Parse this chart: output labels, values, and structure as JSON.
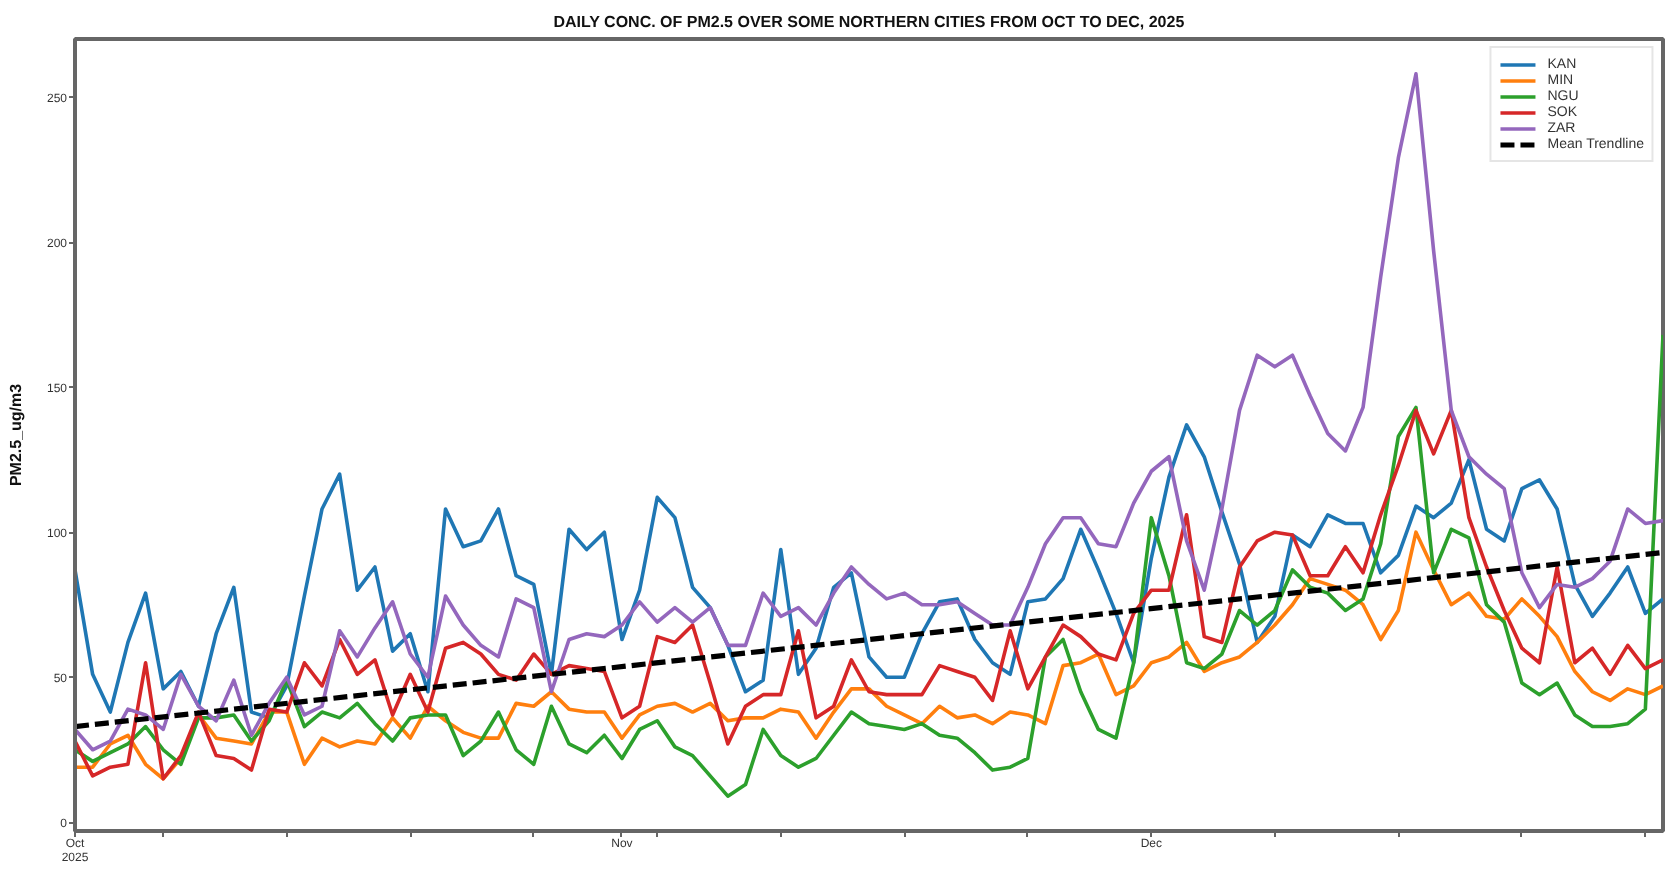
{
  "chart_data": {
    "type": "line",
    "title": "DAILY CONC. OF PM2.5 OVER SOME NORTHERN CITIES FROM OCT TO DEC, 2025",
    "ylabel": "PM2.5_ug/m3",
    "x": [
      "2025-10-01",
      "2025-10-02",
      "2025-10-03",
      "2025-10-04",
      "2025-10-05",
      "2025-10-06",
      "2025-10-07",
      "2025-10-08",
      "2025-10-09",
      "2025-10-10",
      "2025-10-11",
      "2025-10-12",
      "2025-10-13",
      "2025-10-14",
      "2025-10-15",
      "2025-10-16",
      "2025-10-17",
      "2025-10-18",
      "2025-10-19",
      "2025-10-20",
      "2025-10-21",
      "2025-10-22",
      "2025-10-23",
      "2025-10-24",
      "2025-10-25",
      "2025-10-26",
      "2025-10-27",
      "2025-10-28",
      "2025-10-29",
      "2025-10-30",
      "2025-10-31",
      "2025-11-01",
      "2025-11-02",
      "2025-11-03",
      "2025-11-04",
      "2025-11-05",
      "2025-11-06",
      "2025-11-07",
      "2025-11-08",
      "2025-11-09",
      "2025-11-10",
      "2025-11-11",
      "2025-11-12",
      "2025-11-13",
      "2025-11-14",
      "2025-11-15",
      "2025-11-16",
      "2025-11-17",
      "2025-11-18",
      "2025-11-19",
      "2025-11-20",
      "2025-11-21",
      "2025-11-22",
      "2025-11-23",
      "2025-11-24",
      "2025-11-25",
      "2025-11-26",
      "2025-11-27",
      "2025-11-28",
      "2025-11-29",
      "2025-11-30",
      "2025-12-01",
      "2025-12-02",
      "2025-12-03",
      "2025-12-04",
      "2025-12-05",
      "2025-12-06",
      "2025-12-07",
      "2025-12-08",
      "2025-12-09",
      "2025-12-10",
      "2025-12-11",
      "2025-12-12",
      "2025-12-13",
      "2025-12-14",
      "2025-12-15",
      "2025-12-16",
      "2025-12-17",
      "2025-12-18",
      "2025-12-19",
      "2025-12-20",
      "2025-12-21",
      "2025-12-22",
      "2025-12-23",
      "2025-12-24",
      "2025-12-25",
      "2025-12-26",
      "2025-12-27",
      "2025-12-28",
      "2025-12-29",
      "2025-12-30"
    ],
    "series": [
      {
        "name": "KAN",
        "color": "#1f77b4",
        "values": [
          87,
          51,
          38,
          62,
          79,
          46,
          52,
          40,
          65,
          81,
          38,
          36,
          47,
          78,
          108,
          120,
          80,
          88,
          59,
          65,
          45,
          108,
          95,
          97,
          108,
          85,
          82,
          51,
          101,
          94,
          100,
          63,
          80,
          112,
          105,
          81,
          74,
          61,
          45,
          49,
          94,
          51,
          60,
          81,
          86,
          57,
          50,
          50,
          65,
          76,
          77,
          63,
          55,
          51,
          76,
          77,
          84,
          101,
          87,
          72,
          55,
          91,
          119,
          137,
          126,
          107,
          89,
          62,
          71,
          99,
          95,
          106,
          103,
          103,
          86,
          92,
          109,
          105,
          110,
          125,
          101,
          97,
          115,
          118,
          108,
          82,
          71,
          79,
          88,
          72,
          77
        ]
      },
      {
        "name": "MIN",
        "color": "#ff7f0e",
        "values": [
          19,
          19,
          27,
          30,
          20,
          15,
          22,
          37,
          29,
          28,
          27,
          38,
          38,
          20,
          29,
          26,
          28,
          27,
          36,
          29,
          40,
          35,
          31,
          29,
          29,
          41,
          40,
          45,
          39,
          38,
          38,
          29,
          37,
          40,
          41,
          38,
          41,
          35,
          36,
          36,
          39,
          38,
          29,
          38,
          46,
          46,
          40,
          37,
          34,
          40,
          36,
          37,
          34,
          38,
          37,
          34,
          54,
          55,
          58,
          44,
          47,
          55,
          57,
          62,
          52,
          55,
          57,
          62,
          68,
          75,
          84,
          82,
          80,
          75,
          63,
          73,
          100,
          87,
          75,
          79,
          71,
          70,
          77,
          71,
          64,
          52,
          45,
          42,
          46,
          44,
          47
        ]
      },
      {
        "name": "NGU",
        "color": "#2ca02c",
        "values": [
          25,
          21,
          24,
          27,
          33,
          25,
          20,
          36,
          36,
          37,
          28,
          35,
          49,
          33,
          38,
          36,
          41,
          34,
          28,
          36,
          37,
          37,
          23,
          28,
          38,
          25,
          20,
          40,
          27,
          24,
          30,
          22,
          32,
          35,
          26,
          23,
          16,
          9,
          13,
          32,
          23,
          19,
          22,
          30,
          38,
          34,
          33,
          32,
          34,
          30,
          29,
          24,
          18,
          19,
          22,
          57,
          63,
          45,
          32,
          29,
          55,
          105,
          85,
          55,
          53,
          58,
          73,
          68,
          73,
          87,
          81,
          79,
          73,
          77,
          96,
          133,
          143,
          86,
          101,
          98,
          75,
          69,
          48,
          44,
          48,
          37,
          33,
          33,
          34,
          39,
          168
        ]
      },
      {
        "name": "SOK",
        "color": "#d62728",
        "values": [
          28,
          16,
          19,
          20,
          55,
          15,
          23,
          38,
          23,
          22,
          18,
          39,
          38,
          55,
          47,
          63,
          51,
          56,
          37,
          51,
          38,
          60,
          62,
          58,
          51,
          49,
          58,
          51,
          54,
          53,
          52,
          36,
          40,
          64,
          62,
          68,
          48,
          27,
          40,
          44,
          44,
          66,
          36,
          40,
          56,
          45,
          44,
          44,
          44,
          54,
          52,
          50,
          42,
          66,
          46,
          57,
          68,
          64,
          58,
          56,
          72,
          80,
          80,
          106,
          64,
          62,
          88,
          97,
          100,
          99,
          85,
          85,
          95,
          86,
          106,
          123,
          142,
          127,
          142,
          105,
          88,
          73,
          60,
          55,
          88,
          55,
          60,
          51,
          61,
          53,
          56
        ]
      },
      {
        "name": "ZAR",
        "color": "#9467bd",
        "values": [
          32,
          25,
          28,
          39,
          37,
          32,
          51,
          40,
          35,
          49,
          30,
          41,
          50,
          37,
          40,
          66,
          57,
          67,
          76,
          58,
          50,
          78,
          68,
          61,
          57,
          77,
          74,
          45,
          63,
          65,
          64,
          68,
          76,
          69,
          74,
          69,
          74,
          61,
          61,
          79,
          71,
          74,
          68,
          79,
          88,
          82,
          77,
          79,
          75,
          75,
          76,
          72,
          68,
          68,
          81,
          96,
          105,
          105,
          96,
          95,
          110,
          121,
          126,
          97,
          80,
          108,
          142,
          161,
          157,
          161,
          147,
          134,
          128,
          143,
          188,
          229,
          258,
          197,
          142,
          126,
          120,
          115,
          86,
          74,
          82,
          81,
          84,
          90,
          108,
          103,
          104
        ]
      },
      {
        "name": "Mean Trendline",
        "type": "line",
        "color": "#000000",
        "line_style": "dashed",
        "x": [
          "2025-10-01",
          "2025-12-30"
        ],
        "values": [
          33,
          93
        ]
      }
    ],
    "xlim": [
      "2025-10-01",
      "2025-12-30"
    ],
    "ylim": [
      -3,
      270
    ],
    "xticks": [
      {
        "value": "2025-10-01",
        "label": "Oct\n2025"
      },
      {
        "value": "2025-10-06",
        "label": null
      },
      {
        "value": "2025-10-13",
        "label": null
      },
      {
        "value": "2025-10-20",
        "label": null
      },
      {
        "value": "2025-10-27",
        "label": null
      },
      {
        "value": "2025-11-01",
        "label": "Nov"
      },
      {
        "value": "2025-11-03",
        "label": null
      },
      {
        "value": "2025-11-10",
        "label": null
      },
      {
        "value": "2025-11-17",
        "label": null
      },
      {
        "value": "2025-11-24",
        "label": null
      },
      {
        "value": "2025-12-01",
        "label": "Dec"
      },
      {
        "value": "2025-12-08",
        "label": null
      },
      {
        "value": "2025-12-15",
        "label": null
      },
      {
        "value": "2025-12-22",
        "label": null
      },
      {
        "value": "2025-12-29",
        "label": null
      }
    ],
    "yticks": [
      0,
      50,
      100,
      150,
      200,
      250
    ],
    "grid": false,
    "legend": "top right",
    "line_style": "solid"
  }
}
